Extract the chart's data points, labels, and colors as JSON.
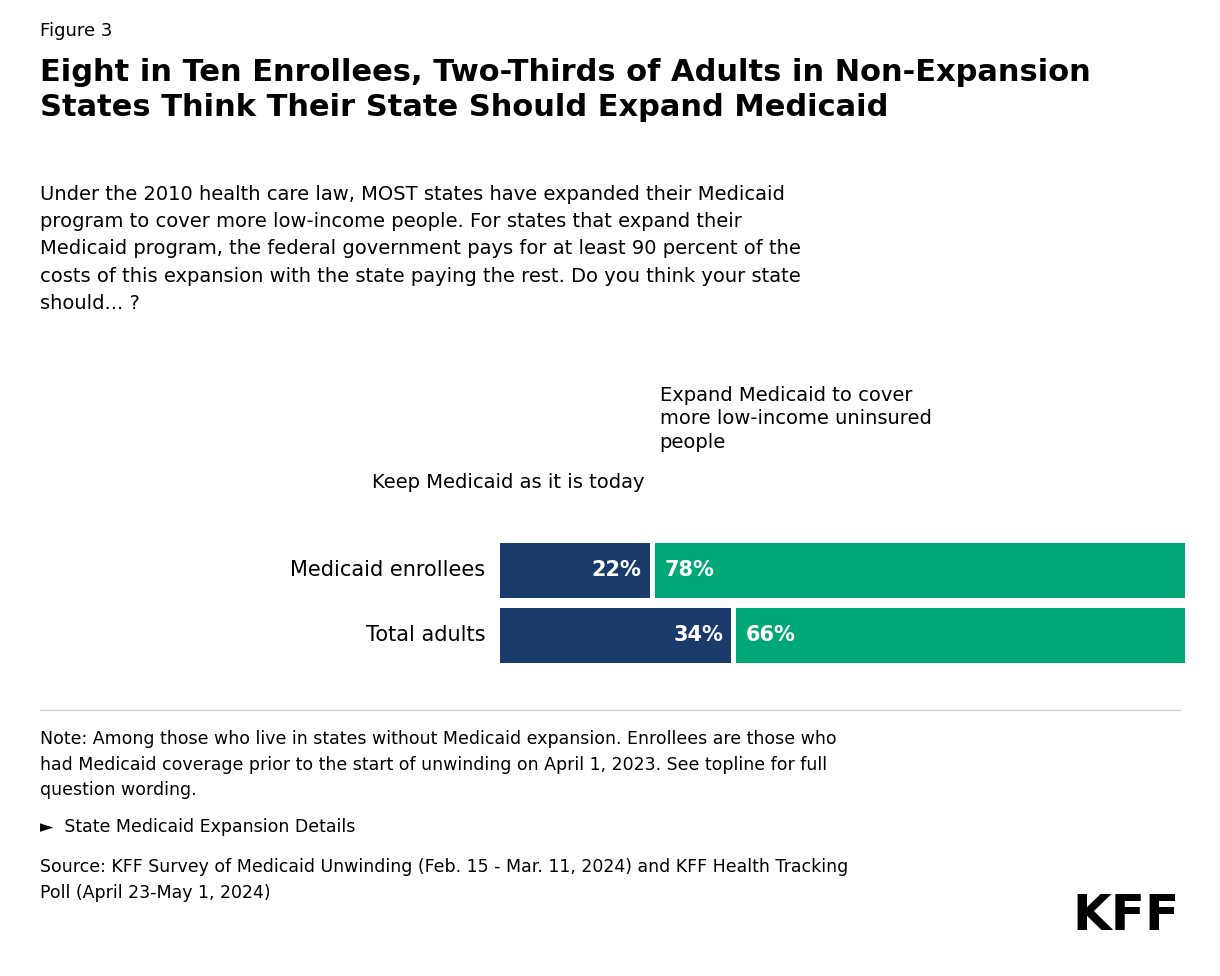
{
  "figure_label": "Figure 3",
  "title": "Eight in Ten Enrollees, Two-Thirds of Adults in Non-Expansion\nStates Think Their State Should Expand Medicaid",
  "subtitle": "Under the 2010 health care law, MOST states have expanded their Medicaid\nprogram to cover more low-income people. For states that expand their\nMedicaid program, the federal government pays for at least 90 percent of the\ncosts of this expansion with the state paying the rest. Do you think your state\nshould... ?",
  "col1_label": "Keep Medicaid as it is today",
  "col2_label": "Expand Medicaid to cover\nmore low-income uninsured\npeople",
  "categories": [
    "Medicaid enrollees",
    "Total adults"
  ],
  "keep_values": [
    22,
    34
  ],
  "expand_values": [
    78,
    66
  ],
  "keep_color": "#1a3a6b",
  "expand_color": "#00a878",
  "note_text": "Note: Among those who live in states without Medicaid expansion. Enrollees are those who\nhad Medicaid coverage prior to the start of unwinding on April 1, 2023. See topline for full\nquestion wording.",
  "link_text": "►  State Medicaid Expansion Details",
  "source_text": "Source: KFF Survey of Medicaid Unwinding (Feb. 15 - Mar. 11, 2024) and KFF Health Tracking\nPoll (April 23-May 1, 2024)",
  "kff_logo_text": "KFF",
  "background_color": "#ffffff",
  "text_color": "#000000"
}
